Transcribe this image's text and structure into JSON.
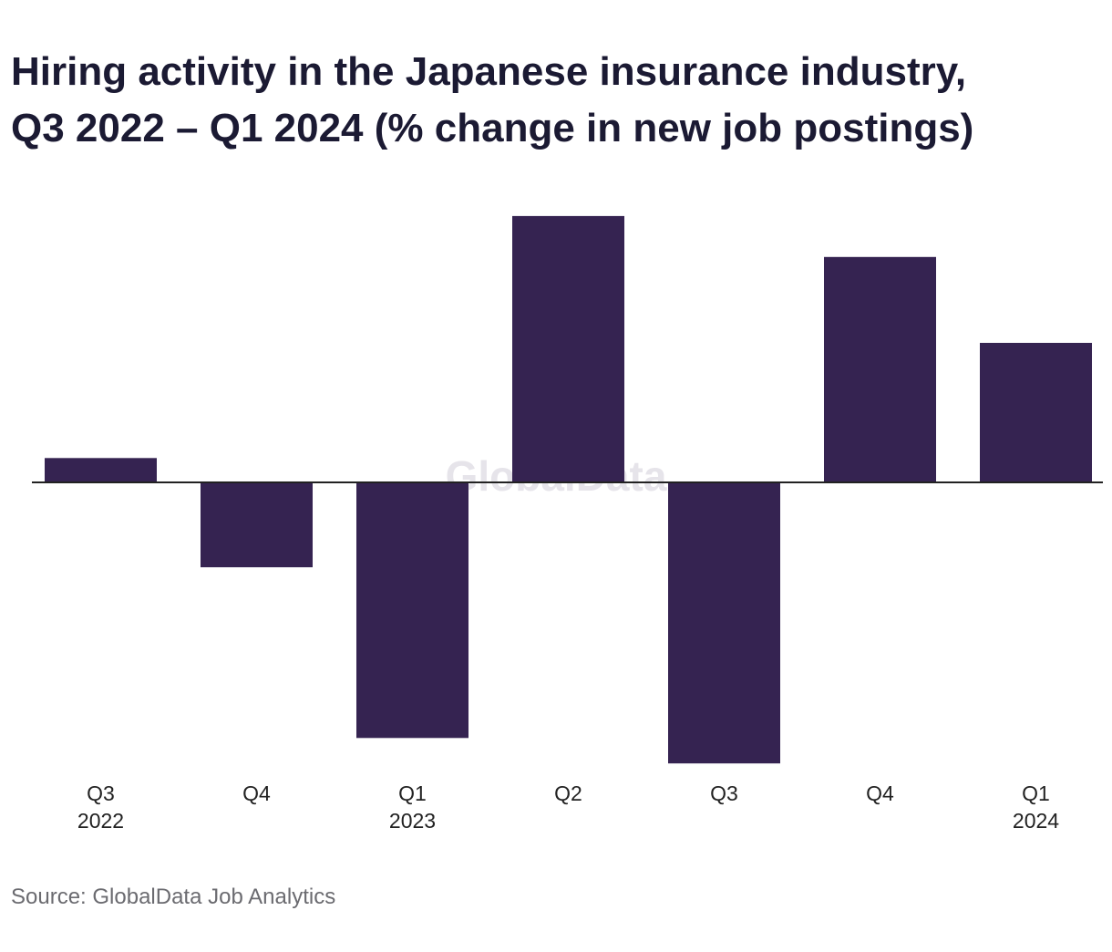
{
  "title": {
    "line1": "Hiring activity in the Japanese insurance industry,",
    "line2": "Q3 2022 – Q1 2024 (% change in new job postings)"
  },
  "source": "Source: GlobalData Job Analytics",
  "watermark": "GlobalData",
  "colors": {
    "bar": "#352351",
    "axis": "#222222",
    "title": "#1b1a33"
  },
  "chart_data": {
    "type": "bar",
    "categories": [
      [
        "Q3",
        "2022"
      ],
      [
        "Q4",
        ""
      ],
      [
        "Q1",
        "2023"
      ],
      [
        "Q2",
        ""
      ],
      [
        "Q3",
        ""
      ],
      [
        "Q4",
        ""
      ],
      [
        "Q1",
        "2024"
      ]
    ],
    "values": [
      2.5,
      -8.7,
      -26.2,
      27.3,
      -28.8,
      23.1,
      14.3
    ],
    "ylim": [
      -30,
      30
    ],
    "grid": false,
    "legend": "none",
    "xlabel": "",
    "ylabel": ""
  }
}
